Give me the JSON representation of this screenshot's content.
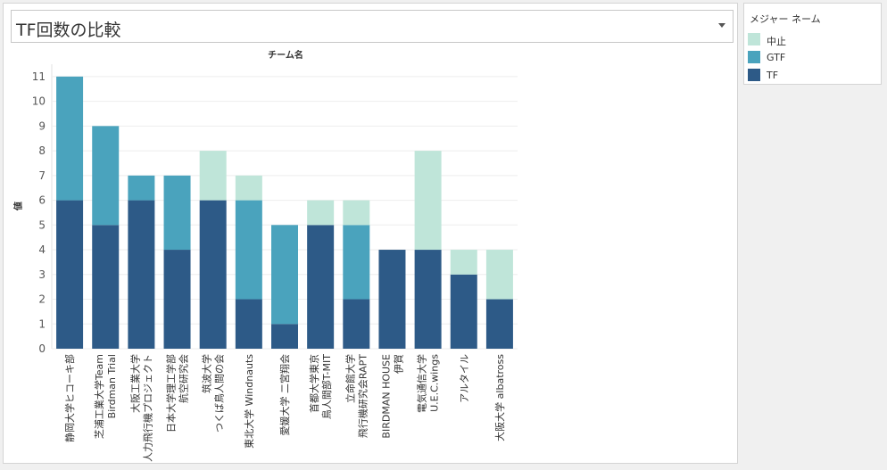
{
  "title": {
    "text": "TF回数の比較"
  },
  "legend": {
    "title": "メジャー ネーム",
    "items": [
      {
        "label": "中止",
        "color": "#bfe5d9"
      },
      {
        "label": "GTF",
        "color": "#4aa3bd"
      },
      {
        "label": "TF",
        "color": "#2d5a87"
      }
    ]
  },
  "chart_data": {
    "type": "bar",
    "stacked": true,
    "title": "チーム名",
    "xlabel": "",
    "ylabel": "値",
    "ylim": [
      0,
      11
    ],
    "yticks": [
      0,
      1,
      2,
      3,
      4,
      5,
      6,
      7,
      8,
      9,
      10,
      11
    ],
    "grid": true,
    "legend_position": "right",
    "categories": [
      "静岡大学ヒコーキ部",
      "芝浦工業大学Team\nBirdman Trial",
      "大阪工業大学\n人力飛行機プロジェクト",
      "日本大学理工学部\n航空研究会",
      "筑波大学\nつくば鳥人間の会",
      "東北大学 Windnauts",
      "愛媛大学 二宮翔会",
      "首都大学東京\n鳥人間部T-MIT",
      "立命館大学\n飛行機研究会RAPT",
      "BIRDMAN HOUSE\n伊賀",
      "電気通信大学\nU.E.C.wings",
      "アルタイル",
      "大阪大学 albatross"
    ],
    "series": [
      {
        "name": "TF",
        "color": "#2d5a87",
        "values": [
          6,
          5,
          6,
          4,
          6,
          2,
          1,
          5,
          2,
          4,
          4,
          3,
          2
        ]
      },
      {
        "name": "GTF",
        "color": "#4aa3bd",
        "values": [
          5,
          4,
          1,
          3,
          0,
          4,
          4,
          0,
          3,
          0,
          0,
          0,
          0
        ]
      },
      {
        "name": "中止",
        "color": "#bfe5d9",
        "values": [
          0,
          0,
          0,
          0,
          2,
          1,
          0,
          1,
          1,
          0,
          4,
          1,
          2
        ]
      }
    ]
  }
}
